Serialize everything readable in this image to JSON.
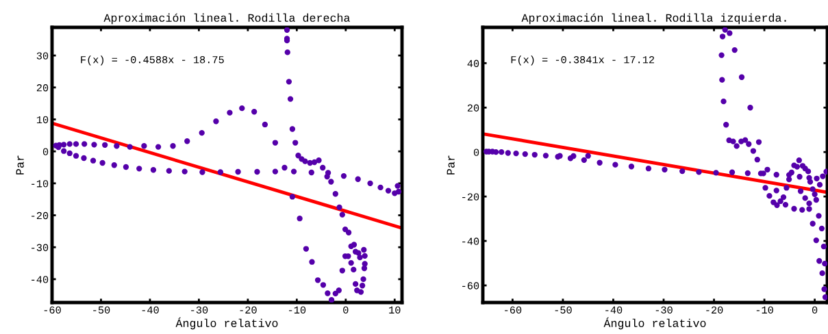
{
  "chart_data": [
    {
      "type": "scatter",
      "title": "Aproximación lineal. Rodilla derecha",
      "xlabel": "Ángulo relativo",
      "ylabel": "Par",
      "annotations": [
        "F(x) = -0.4588x - 18.75"
      ],
      "xlim": [
        -60,
        11.5
      ],
      "ylim": [
        -47.3,
        38.8
      ],
      "xticks": [
        -60,
        -50,
        -40,
        -30,
        -20,
        -10,
        0,
        10
      ],
      "yticks": [
        -40,
        -30,
        -20,
        -10,
        0,
        10,
        20,
        30
      ],
      "grid": false,
      "series": [
        {
          "marker": "circle",
          "color": "#5500aa",
          "x": [
            -59.2,
            -58.5,
            -57.6,
            -56.4,
            -55.1,
            -53.4,
            -51.4,
            -49.2,
            -46.8,
            -44.1,
            -41.2,
            -38.3,
            -35.3,
            -32.4,
            -29.4,
            -26.5,
            -58.7,
            -57.6,
            -56.4,
            -55.1,
            -53.5,
            -51.6,
            -49.7,
            -47.3,
            -44.9,
            -42.2,
            -39.3,
            -36.1,
            -32.9,
            -29.3,
            -25.6,
            -22.0,
            -18.1,
            -14.4,
            -12.5,
            -10.6,
            -7.0,
            -23.7,
            -21.2,
            -18.7,
            -16.5,
            -14.4,
            -12.0,
            -12.0,
            -12.0,
            -11.9,
            -11.6,
            -11.3,
            -10.9,
            -10.3,
            -9.7,
            -9.0,
            -8.3,
            -7.3,
            -6.4,
            -5.5,
            -4.7,
            -3.6,
            -3.8,
            -3.0,
            -2.1,
            -1.3,
            -0.7,
            -0.1,
            0.6,
            -0.4,
            2.5,
            5.0,
            7.1,
            8.7,
            10.0,
            10.6,
            10.8,
            -10.9,
            -9.4,
            -8.1,
            -6.9,
            -5.7,
            -4.6,
            -3.7,
            -2.9,
            -2.1,
            -1.4,
            -0.7,
            -0.1,
            0.5,
            1.1,
            1.6,
            1.1,
            1.7,
            2.0,
            2.6,
            2.9,
            3.7,
            3.9,
            3.9,
            3.8,
            3.6,
            3.4,
            3.1,
            2.3,
            2.0
          ],
          "values": [
            1.8,
            2.0,
            2.1,
            2.3,
            2.3,
            2.3,
            2.1,
            2.0,
            1.7,
            1.4,
            1.7,
            1.4,
            1.7,
            3.2,
            5.8,
            9.4,
            1.3,
            0.1,
            -0.6,
            -1.4,
            -2.1,
            -2.9,
            -3.6,
            -4.3,
            -4.9,
            -5.4,
            -5.8,
            -6.1,
            -6.3,
            -6.5,
            -6.5,
            -6.4,
            -6.4,
            -6.3,
            -5.1,
            -6.3,
            -6.6,
            12.1,
            13.5,
            12.4,
            8.4,
            2.7,
            38.0,
            35.3,
            34.7,
            31.0,
            21.8,
            16.4,
            7.0,
            2.7,
            -1.3,
            -2.4,
            -3.1,
            -3.6,
            -3.4,
            -2.8,
            -5.1,
            -6.7,
            -7.9,
            -9.5,
            -13.3,
            -17.5,
            -19.8,
            -24.4,
            -25.4,
            -7.7,
            -8.7,
            -10.0,
            -11.3,
            -12.3,
            -13.1,
            -10.8,
            -12.6,
            -14.2,
            -21.0,
            -30.5,
            -34.6,
            -40.3,
            -41.8,
            -44.4,
            -46.5,
            -44.5,
            -43.5,
            -37.3,
            -32.8,
            -32.8,
            -34.9,
            -37.0,
            -29.7,
            -29.2,
            -31.4,
            -31.8,
            -33.2,
            -30.8,
            -32.7,
            -35.2,
            -36.6,
            -40.0,
            -42.0,
            -44.0,
            -43.5,
            -41.5
          ]
        },
        {
          "type": "line",
          "marker": "none",
          "color": "#ff0000",
          "x": [
            -60,
            11.5
          ],
          "values": [
            8.8,
            -24.0
          ]
        }
      ]
    },
    {
      "type": "scatter",
      "title": "Aproximación lineal. Rodilla izquierda.",
      "xlabel": "Ángulo relativo",
      "ylabel": "Par",
      "annotations": [
        "F(x) = -0.3841x - 17.12"
      ],
      "xlim": [
        -65.9,
        2.5
      ],
      "ylim": [
        -67.7,
        56.1
      ],
      "xticks": [
        -60,
        -50,
        -40,
        -30,
        -20,
        -10,
        0
      ],
      "yticks": [
        -60,
        -40,
        -20,
        0,
        20,
        40
      ],
      "grid": false,
      "series": [
        {
          "marker": "circle",
          "color": "#5500aa",
          "x": [
            -65.2,
            -64.7,
            -64.0,
            -63.3,
            -62.2,
            -60.9,
            -59.3,
            -57.5,
            -55.6,
            -53.4,
            -51.0,
            -50.6,
            -48.5,
            -47.9,
            -45.8,
            -45.0,
            -42.7,
            -39.6,
            -36.4,
            -33.0,
            -29.8,
            -26.3,
            -23.0,
            -19.6,
            -16.4,
            -13.3,
            -17.8,
            -18.3,
            -16.9,
            -18.5,
            -15.9,
            -18.4,
            -14.5,
            -18.1,
            -12.8,
            -17.6,
            -17.0,
            -16.2,
            -15.5,
            -14.6,
            -13.8,
            -13.1,
            -11.1,
            -12.2,
            -11.4,
            -10.7,
            -10.2,
            -9.4,
            -9.8,
            -9.0,
            -8.2,
            -7.5,
            -6.8,
            -6.2,
            -5.8,
            -7.6,
            -7.6,
            -5.6,
            -5.1,
            -5.1,
            -4.6,
            -4.1,
            -3.5,
            -3.1,
            -2.4,
            -1.9,
            -1.3,
            -3.0,
            -2.8,
            -4.1,
            -2.5,
            -1.9,
            -1.1,
            -1.1,
            -1.1,
            -0.9,
            -0.4,
            0.0,
            0.3,
            0.4,
            1.0,
            1.6,
            2.3,
            0.8,
            -0.4,
            1.4,
            0.3,
            1.8,
            0.9,
            2.0,
            1.5,
            1.9,
            2.1
          ],
          "values": [
            0.2,
            0.2,
            0.2,
            0.0,
            0.0,
            -0.4,
            -0.6,
            -0.9,
            -1.2,
            -1.6,
            -2.1,
            -1.7,
            -2.8,
            -1.8,
            -3.6,
            -1.7,
            -4.8,
            -5.7,
            -6.5,
            -7.4,
            -7.9,
            -8.6,
            -9.0,
            -9.3,
            -9.1,
            -9.5,
            55.0,
            52.0,
            53.5,
            43.6,
            45.9,
            32.5,
            33.7,
            22.8,
            20.0,
            12.3,
            5.3,
            4.8,
            2.7,
            4.8,
            5.4,
            3.6,
            4.5,
            0.5,
            -3.4,
            -9.6,
            -9.6,
            -7.9,
            -16.1,
            -19.7,
            -22.6,
            -23.9,
            -22.1,
            -20.3,
            -23.7,
            -17.3,
            -10.2,
            -16.1,
            -10.3,
            -12.3,
            -9.2,
            -6.0,
            -6.6,
            -3.7,
            -6.2,
            -7.4,
            -8.7,
            -11.1,
            -17.6,
            -25.5,
            -26.0,
            -20.7,
            -23.1,
            -25.6,
            -11.6,
            -13.4,
            -16.7,
            -19.0,
            -21.5,
            -11.9,
            -14.7,
            -10.9,
            -8.8,
            -28.7,
            -32.2,
            -34.4,
            -39.7,
            -42.5,
            -49.0,
            -50.2,
            -54.5,
            -61.7,
            -65.3
          ]
        },
        {
          "type": "line",
          "marker": "none",
          "color": "#ff0000",
          "x": [
            -65.9,
            2.5
          ],
          "values": [
            8.2,
            -18.1
          ]
        }
      ]
    }
  ]
}
